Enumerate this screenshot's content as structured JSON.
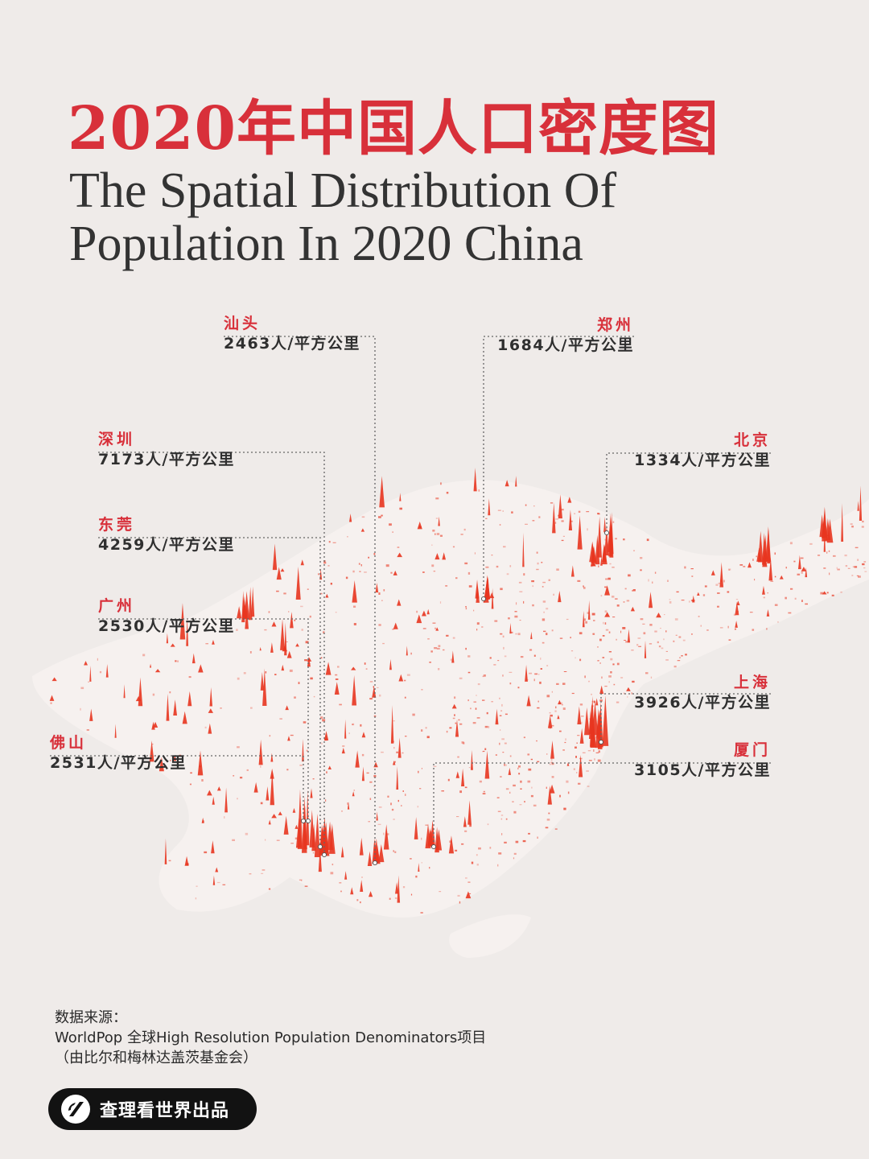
{
  "header": {
    "title": "2020年中国人口密度图",
    "subtitle_line1": "The Spatial Distribution Of",
    "subtitle_line2": "Population In 2020 China"
  },
  "colors": {
    "accent": "#d8303a",
    "text": "#333333",
    "background": "#efebe9",
    "spike": "#e8351f"
  },
  "callouts": [
    {
      "id": "shantou",
      "city": "汕头",
      "density": "2463人/平方公里"
    },
    {
      "id": "zhengzhou",
      "city": "郑州",
      "density": "1684人/平方公里"
    },
    {
      "id": "shenzhen",
      "city": "深圳",
      "density": "7173人/平方公里"
    },
    {
      "id": "beijing",
      "city": "北京",
      "density": "1334人/平方公里"
    },
    {
      "id": "dongguan",
      "city": "东莞",
      "density": "4259人/平方公里"
    },
    {
      "id": "guangzhou",
      "city": "广州",
      "density": "2530人/平方公里"
    },
    {
      "id": "shanghai",
      "city": "上海",
      "density": "3926人/平方公里"
    },
    {
      "id": "foshan",
      "city": "佛山",
      "density": "2531人/平方公里"
    },
    {
      "id": "xiamen",
      "city": "厦门",
      "density": "3105人/平方公里"
    }
  ],
  "footer": {
    "source_label": "数据来源：",
    "source_line": "WorldPop 全球High Resolution Population Denominators项目",
    "source_note": "（由比尔和梅林达盖茨基金会）",
    "producer": "查理看世界出品",
    "producer_icon": "slash-logo-icon"
  }
}
